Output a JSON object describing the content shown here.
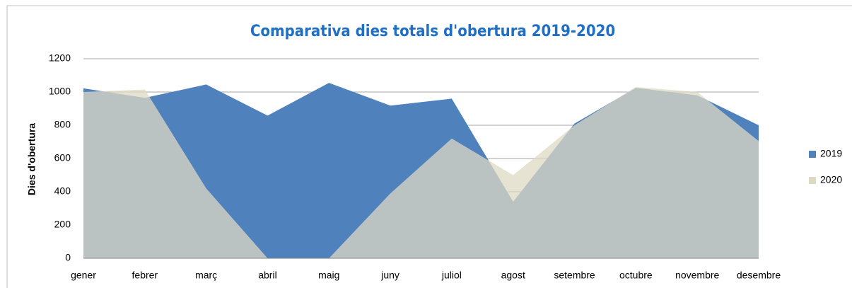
{
  "chart_data": {
    "type": "area",
    "title": "Comparativa dies totals d'obertura 2019-2020",
    "ylabel": "Dies d'obertura",
    "categories": [
      "gener",
      "febrer",
      "març",
      "abril",
      "maig",
      "juny",
      "juliol",
      "agost",
      "setembre",
      "octubre",
      "novembre",
      "desembre"
    ],
    "series": [
      {
        "name": "2019",
        "color": "#4f81bd",
        "values": [
          1022,
          965,
          1045,
          858,
          1055,
          918,
          960,
          340,
          810,
          1025,
          980,
          800
        ]
      },
      {
        "name": "2020",
        "color": "#ddd9c3",
        "values": [
          1000,
          1015,
          420,
          0,
          0,
          390,
          720,
          500,
          800,
          1030,
          1000,
          705
        ]
      }
    ],
    "ylim": [
      0,
      1200
    ],
    "yticks": [
      0,
      200,
      400,
      600,
      800,
      1000,
      1200
    ],
    "grid": true,
    "legend": "right"
  }
}
